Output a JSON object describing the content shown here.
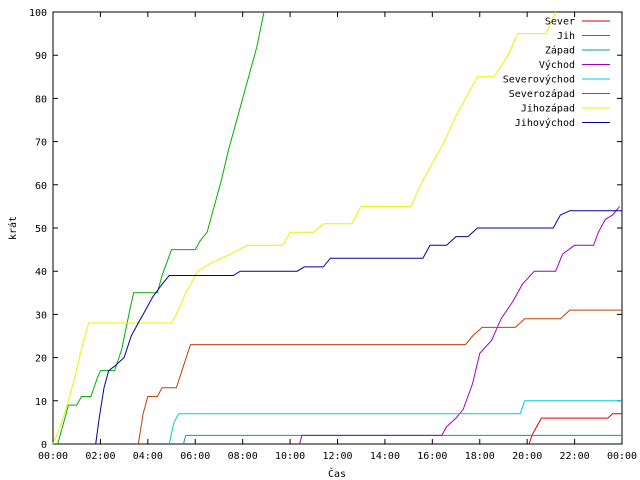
{
  "chart_data": {
    "type": "line",
    "xlabel": "Čas",
    "ylabel": "krát",
    "xlim": [
      0,
      24
    ],
    "ylim": [
      0,
      100
    ],
    "grid": false,
    "legend_position": "top-right",
    "x_ticks": [
      {
        "value": 0,
        "label": "00:00"
      },
      {
        "value": 2,
        "label": "02:00"
      },
      {
        "value": 4,
        "label": "04:00"
      },
      {
        "value": 6,
        "label": "06:00"
      },
      {
        "value": 8,
        "label": "08:00"
      },
      {
        "value": 10,
        "label": "10:00"
      },
      {
        "value": 12,
        "label": "12:00"
      },
      {
        "value": 14,
        "label": "14:00"
      },
      {
        "value": 16,
        "label": "16:00"
      },
      {
        "value": 18,
        "label": "18:00"
      },
      {
        "value": 20,
        "label": "20:00"
      },
      {
        "value": 22,
        "label": "22:00"
      },
      {
        "value": 24,
        "label": "00:00"
      }
    ],
    "y_ticks": [
      {
        "value": 0,
        "label": "0"
      },
      {
        "value": 10,
        "label": "10"
      },
      {
        "value": 20,
        "label": "20"
      },
      {
        "value": 30,
        "label": "30"
      },
      {
        "value": 40,
        "label": "40"
      },
      {
        "value": 50,
        "label": "50"
      },
      {
        "value": 60,
        "label": "60"
      },
      {
        "value": 70,
        "label": "70"
      },
      {
        "value": 80,
        "label": "80"
      },
      {
        "value": 90,
        "label": "90"
      },
      {
        "value": 100,
        "label": "100"
      }
    ],
    "series": [
      {
        "name": "Sever",
        "color": "#e00000",
        "points": [
          [
            20.08,
            0
          ],
          [
            20.2,
            2
          ],
          [
            20.4,
            4
          ],
          [
            20.6,
            6
          ],
          [
            23.4,
            6
          ],
          [
            23.6,
            7
          ],
          [
            24,
            7
          ]
        ]
      },
      {
        "name": "Jih",
        "color": "#00b000",
        "points": [
          [
            0.2,
            0
          ],
          [
            0.35,
            3
          ],
          [
            0.5,
            6
          ],
          [
            0.65,
            9
          ],
          [
            1.0,
            9
          ],
          [
            1.2,
            11
          ],
          [
            1.6,
            11
          ],
          [
            1.85,
            15
          ],
          [
            2.0,
            17
          ],
          [
            2.6,
            17
          ],
          [
            2.9,
            22
          ],
          [
            3.2,
            30
          ],
          [
            3.4,
            35
          ],
          [
            4.4,
            35
          ],
          [
            4.6,
            39
          ],
          [
            4.8,
            42
          ],
          [
            5.0,
            45
          ],
          [
            6.0,
            45
          ],
          [
            6.2,
            47
          ],
          [
            6.5,
            49
          ],
          [
            6.8,
            55
          ],
          [
            7.1,
            61
          ],
          [
            7.4,
            68
          ],
          [
            7.7,
            74
          ],
          [
            8.0,
            80
          ],
          [
            8.3,
            86
          ],
          [
            8.6,
            92
          ],
          [
            8.9,
            100
          ]
        ]
      },
      {
        "name": "Západ",
        "color": "#00a0a0",
        "points": [
          [
            5.5,
            0
          ],
          [
            5.6,
            2
          ],
          [
            24,
            2
          ]
        ]
      },
      {
        "name": "Východ",
        "color": "#a000c0",
        "points": [
          [
            10.4,
            0
          ],
          [
            10.5,
            2
          ],
          [
            16.4,
            2
          ],
          [
            16.6,
            4
          ],
          [
            17.0,
            6
          ],
          [
            17.3,
            8
          ],
          [
            17.7,
            14
          ],
          [
            18.0,
            21
          ],
          [
            18.5,
            24
          ],
          [
            18.9,
            29
          ],
          [
            19.4,
            33
          ],
          [
            19.8,
            37
          ],
          [
            20.3,
            40
          ],
          [
            21.2,
            40
          ],
          [
            21.5,
            44
          ],
          [
            22.0,
            46
          ],
          [
            22.8,
            46
          ],
          [
            23.0,
            49
          ],
          [
            23.3,
            52
          ],
          [
            23.6,
            53
          ],
          [
            23.9,
            55
          ]
        ]
      },
      {
        "name": "Severovýchod",
        "color": "#00d0d0",
        "points": [
          [
            4.9,
            0
          ],
          [
            5.1,
            5
          ],
          [
            5.3,
            7
          ],
          [
            19.7,
            7
          ],
          [
            19.9,
            10
          ],
          [
            24,
            10
          ]
        ]
      },
      {
        "name": "Severozápad",
        "color": "#c04000",
        "points": [
          [
            3.6,
            0
          ],
          [
            3.8,
            7
          ],
          [
            4.0,
            11
          ],
          [
            4.4,
            11
          ],
          [
            4.6,
            13
          ],
          [
            5.2,
            13
          ],
          [
            5.5,
            18
          ],
          [
            5.8,
            23
          ],
          [
            17.4,
            23
          ],
          [
            17.7,
            25
          ],
          [
            18.1,
            27
          ],
          [
            19.5,
            27
          ],
          [
            19.9,
            29
          ],
          [
            21.4,
            29
          ],
          [
            21.8,
            31
          ],
          [
            24,
            31
          ]
        ]
      },
      {
        "name": "Jihozápad",
        "color": "#f0f000",
        "points": [
          [
            0,
            0
          ],
          [
            0.3,
            4
          ],
          [
            0.6,
            9
          ],
          [
            0.9,
            15
          ],
          [
            1.2,
            22
          ],
          [
            1.5,
            28
          ],
          [
            5.0,
            28
          ],
          [
            5.2,
            30
          ],
          [
            5.6,
            35
          ],
          [
            6.1,
            40
          ],
          [
            6.7,
            42
          ],
          [
            7.5,
            44
          ],
          [
            8.2,
            46
          ],
          [
            9.7,
            46
          ],
          [
            10.0,
            49
          ],
          [
            11.0,
            49
          ],
          [
            11.4,
            51
          ],
          [
            12.6,
            51
          ],
          [
            13.0,
            55
          ],
          [
            15.1,
            55
          ],
          [
            15.5,
            60
          ],
          [
            16.0,
            65
          ],
          [
            16.5,
            70
          ],
          [
            17.0,
            76
          ],
          [
            17.5,
            81
          ],
          [
            17.9,
            85
          ],
          [
            18.6,
            85
          ],
          [
            19.2,
            90
          ],
          [
            19.6,
            95
          ],
          [
            20.8,
            95
          ],
          [
            21.2,
            100
          ]
        ]
      },
      {
        "name": "Jihovýchod",
        "color": "#0000a0",
        "points": [
          [
            1.8,
            0
          ],
          [
            1.95,
            6
          ],
          [
            2.15,
            13
          ],
          [
            2.35,
            17
          ],
          [
            2.6,
            18
          ],
          [
            3.0,
            20
          ],
          [
            3.3,
            25
          ],
          [
            3.6,
            28
          ],
          [
            3.9,
            31
          ],
          [
            4.2,
            34
          ],
          [
            4.6,
            37
          ],
          [
            4.9,
            39
          ],
          [
            7.6,
            39
          ],
          [
            7.9,
            40
          ],
          [
            10.3,
            40
          ],
          [
            10.6,
            41
          ],
          [
            11.4,
            41
          ],
          [
            11.7,
            43
          ],
          [
            15.6,
            43
          ],
          [
            15.9,
            46
          ],
          [
            16.6,
            46
          ],
          [
            17.0,
            48
          ],
          [
            17.5,
            48
          ],
          [
            17.9,
            50
          ],
          [
            21.1,
            50
          ],
          [
            21.4,
            53
          ],
          [
            21.8,
            54
          ],
          [
            24,
            54
          ]
        ]
      }
    ]
  }
}
